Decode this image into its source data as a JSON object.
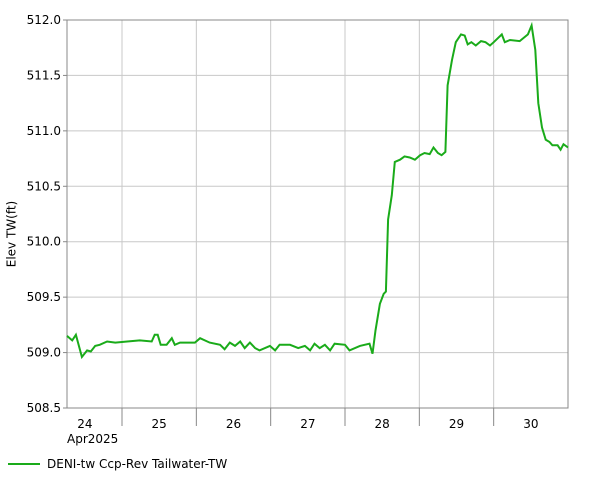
{
  "chart_data": {
    "type": "line",
    "y_label": "Elev TW(ft)",
    "x_sublabel": "Apr2025",
    "xlim": [
      24.26,
      31
    ],
    "xgrid": [
      25,
      26,
      27,
      28,
      29,
      30
    ],
    "xtick_labels": [
      {
        "value": 24.5,
        "label": "24"
      },
      {
        "value": 25.5,
        "label": "25"
      },
      {
        "value": 26.5,
        "label": "26"
      },
      {
        "value": 27.5,
        "label": "27"
      },
      {
        "value": 28.5,
        "label": "28"
      },
      {
        "value": 29.5,
        "label": "29"
      },
      {
        "value": 30.5,
        "label": "30"
      }
    ],
    "ylim": [
      508.5,
      512
    ],
    "yticks": [
      {
        "value": 508.5,
        "label": "508.5"
      },
      {
        "value": 509,
        "label": "509.0"
      },
      {
        "value": 509.5,
        "label": "509.5"
      },
      {
        "value": 510,
        "label": "510.0"
      },
      {
        "value": 510.5,
        "label": "510.5"
      },
      {
        "value": 511,
        "label": "511.0"
      },
      {
        "value": 511.5,
        "label": "511.5"
      },
      {
        "value": 512,
        "label": "512.0"
      }
    ],
    "grid": true,
    "legend": "bottom",
    "x": [
      24.26,
      24.33,
      24.38,
      24.46,
      24.53,
      24.58,
      24.64,
      24.7,
      24.8,
      24.91,
      25.07,
      25.24,
      25.4,
      25.44,
      25.48,
      25.52,
      25.6,
      25.67,
      25.71,
      25.78,
      25.98,
      26.05,
      26.18,
      26.32,
      26.38,
      26.45,
      26.52,
      26.59,
      26.65,
      26.72,
      26.79,
      26.85,
      26.99,
      27.06,
      27.12,
      27.26,
      27.37,
      27.46,
      27.53,
      27.59,
      27.66,
      27.73,
      27.8,
      27.86,
      28.0,
      28.06,
      28.2,
      28.33,
      28.37,
      28.41,
      28.47,
      28.52,
      28.55,
      28.58,
      28.63,
      28.67,
      28.74,
      28.8,
      28.87,
      28.94,
      29.01,
      29.07,
      29.14,
      29.19,
      29.25,
      29.3,
      29.35,
      29.38,
      29.44,
      29.49,
      29.56,
      29.61,
      29.65,
      29.7,
      29.76,
      29.83,
      29.89,
      29.95,
      30.0,
      30.11,
      30.15,
      30.22,
      30.35,
      30.46,
      30.51,
      30.56,
      30.6,
      30.65,
      30.7,
      30.75,
      30.79,
      30.86,
      30.9,
      30.94,
      31.0
    ],
    "series": [
      {
        "name": "DENI-tw Ccp-Rev Tailwater-TW",
        "color": "#1aab1a",
        "values": [
          509.15,
          509.11,
          509.16,
          508.96,
          509.02,
          509.01,
          509.06,
          509.07,
          509.1,
          509.09,
          509.1,
          509.11,
          509.1,
          509.16,
          509.16,
          509.07,
          509.07,
          509.13,
          509.07,
          509.09,
          509.09,
          509.13,
          509.09,
          509.07,
          509.03,
          509.09,
          509.06,
          509.1,
          509.04,
          509.09,
          509.04,
          509.02,
          509.06,
          509.02,
          509.07,
          509.07,
          509.04,
          509.06,
          509.02,
          509.08,
          509.04,
          509.07,
          509.02,
          509.08,
          509.07,
          509.02,
          509.06,
          509.08,
          508.99,
          509.2,
          509.44,
          509.53,
          509.55,
          510.2,
          510.42,
          510.72,
          510.74,
          510.77,
          510.76,
          510.74,
          510.78,
          510.8,
          510.79,
          510.85,
          510.8,
          510.78,
          510.81,
          511.41,
          511.64,
          511.8,
          511.87,
          511.86,
          511.78,
          511.8,
          511.77,
          511.81,
          511.8,
          511.77,
          511.8,
          511.87,
          511.8,
          511.82,
          511.81,
          511.87,
          511.95,
          511.73,
          511.25,
          511.03,
          510.92,
          510.9,
          510.87,
          510.87,
          510.83,
          510.88,
          510.85
        ]
      }
    ]
  }
}
